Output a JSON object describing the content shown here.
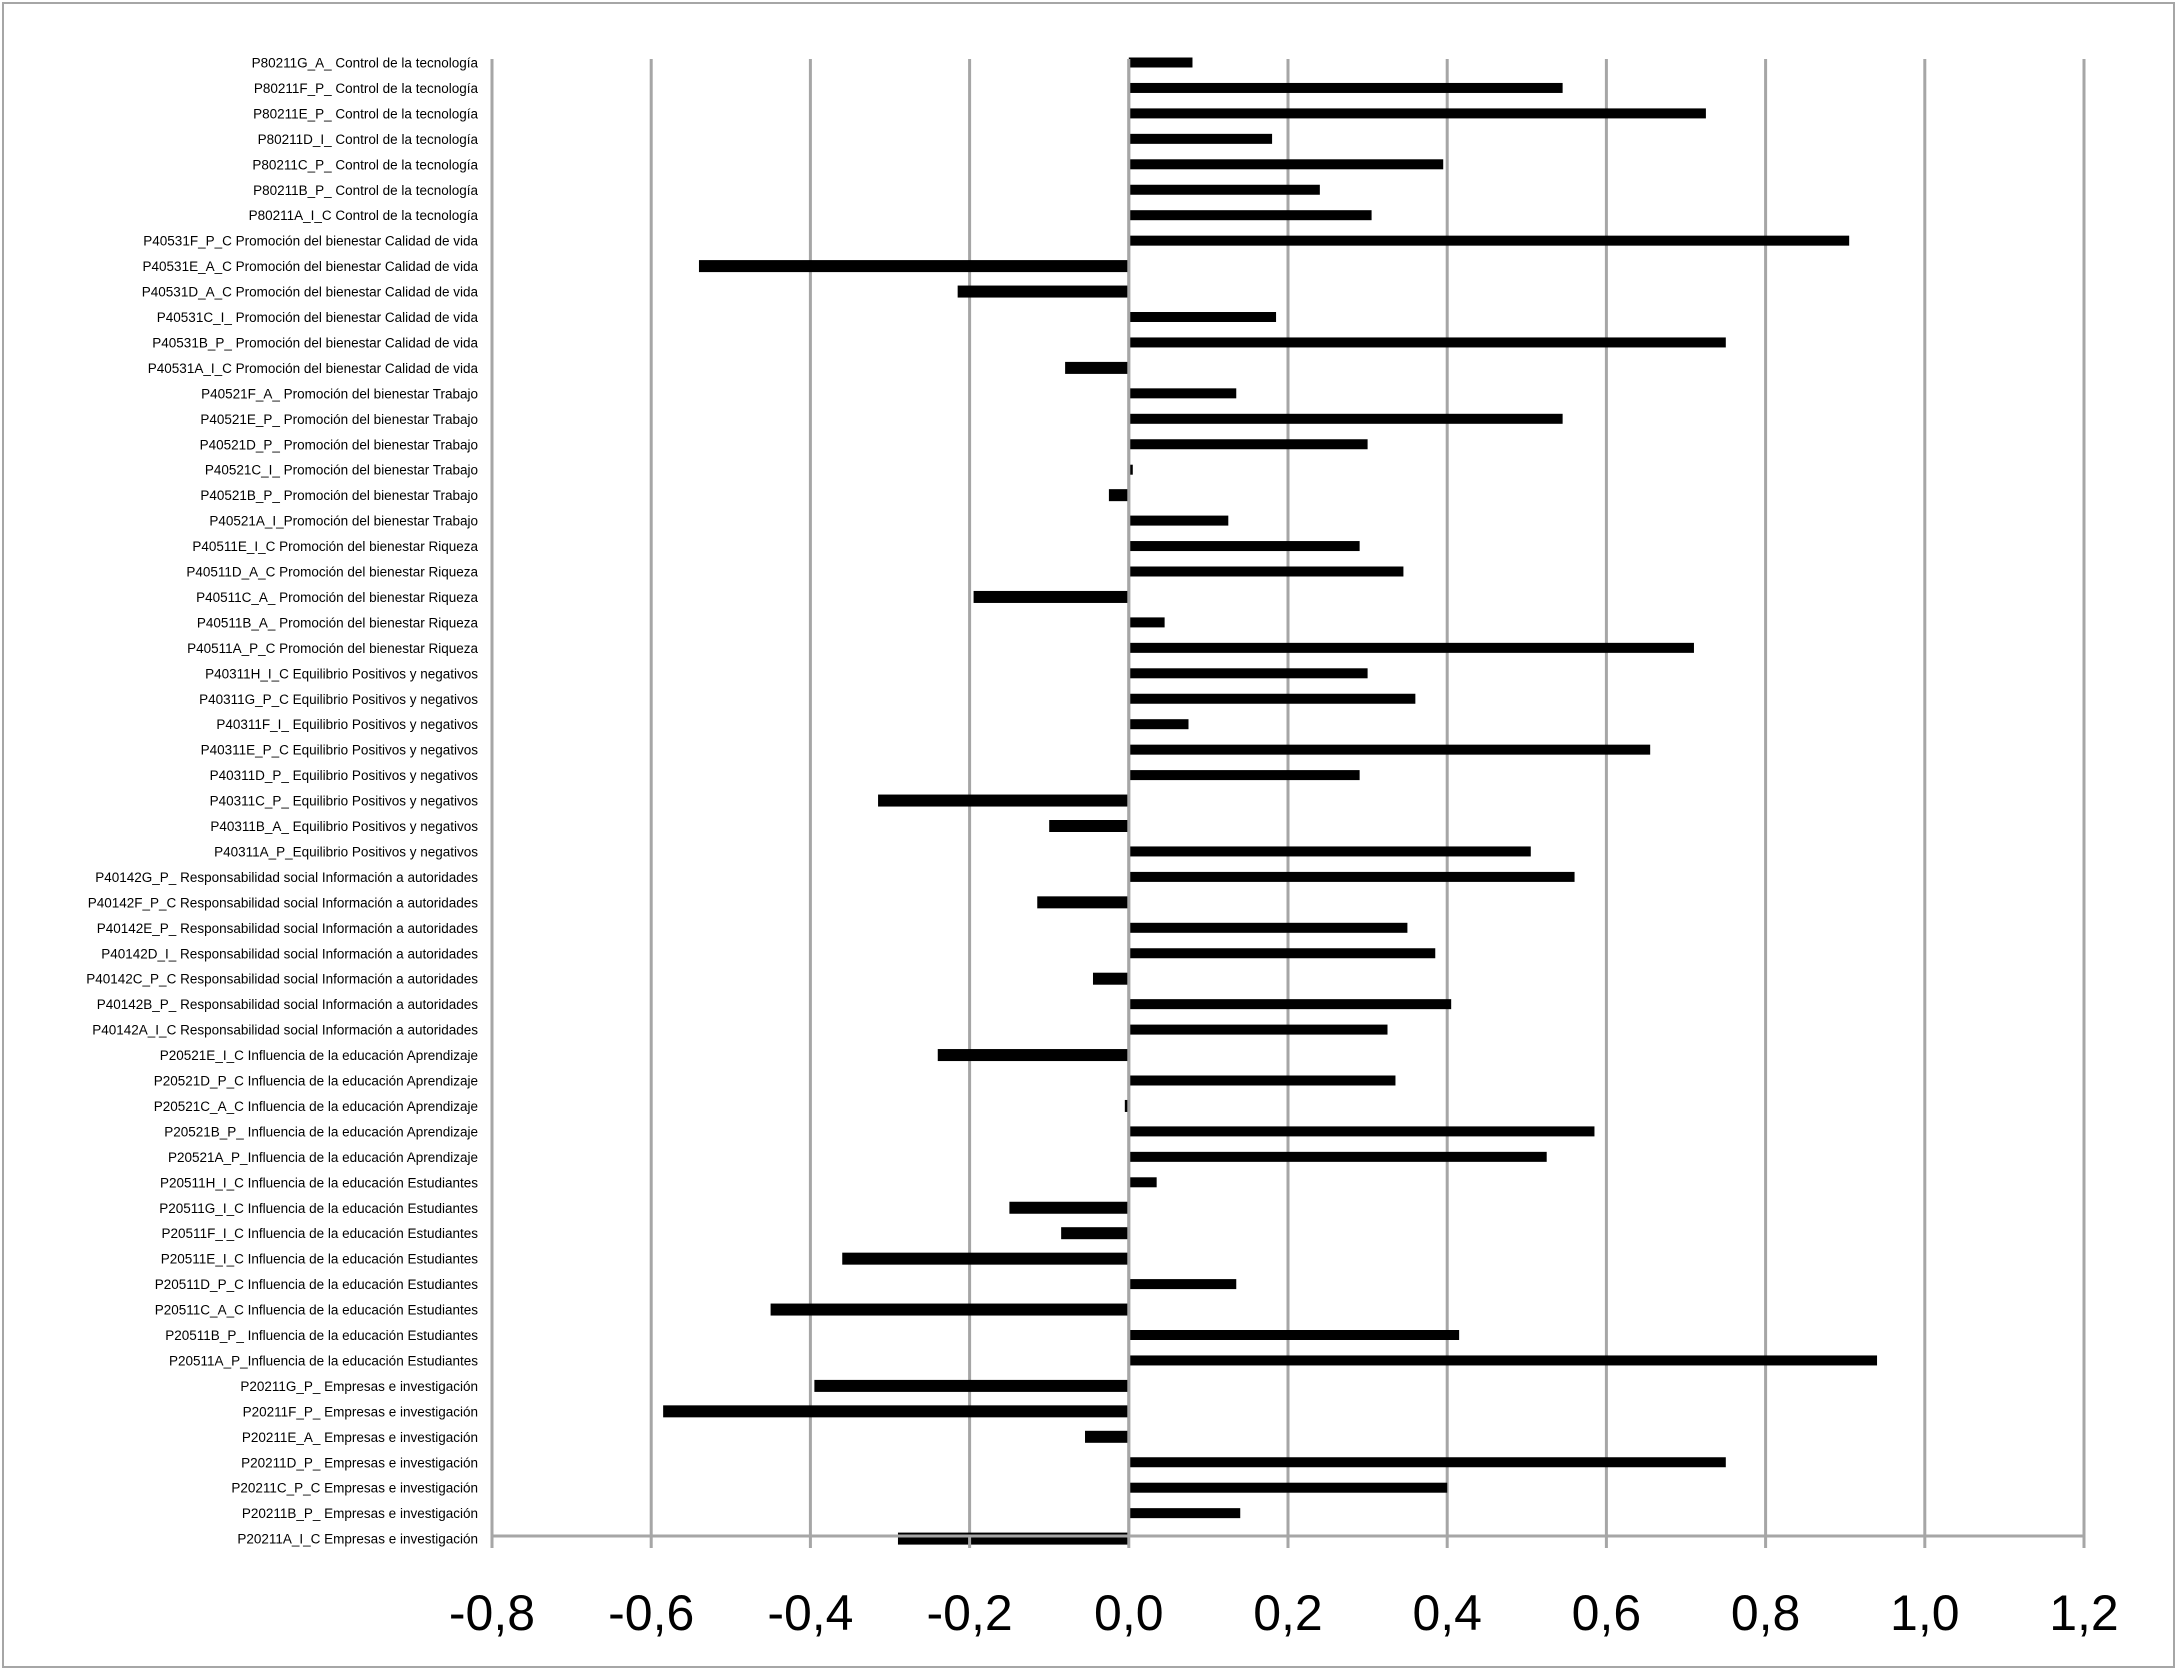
{
  "chart_data": {
    "type": "bar",
    "orientation": "horizontal",
    "title": "",
    "xlabel": "",
    "ylabel": "",
    "xlim": [
      -0.8,
      1.2
    ],
    "xticks": [
      -0.8,
      -0.6,
      -0.4,
      -0.2,
      0.0,
      0.2,
      0.4,
      0.6,
      0.8,
      1.0,
      1.2
    ],
    "xtick_labels": [
      "-0,8",
      "-0,6",
      "-0,4",
      "-0,2",
      "0,0",
      "0,2",
      "0,4",
      "0,6",
      "0,8",
      "1,0",
      "1,2"
    ],
    "grid": "vertical",
    "legend": "none",
    "categories": [
      "P80211G_A_ Control de la tecnología",
      "P80211F_P_ Control de la tecnología",
      "P80211E_P_ Control de la tecnología",
      "P80211D_I_ Control de la tecnología",
      "P80211C_P_ Control de la tecnología",
      "P80211B_P_ Control de la tecnología",
      "P80211A_I_C Control de la tecnología",
      "P40531F_P_C Promoción del bienestar Calidad de vida",
      "P40531E_A_C Promoción del bienestar Calidad de vida",
      "P40531D_A_C Promoción del bienestar Calidad de vida",
      "P40531C_I_ Promoción del bienestar Calidad de vida",
      "P40531B_P_ Promoción del bienestar Calidad de vida",
      "P40531A_I_C Promoción del bienestar Calidad de vida",
      "P40521F_A_ Promoción del bienestar Trabajo",
      "P40521E_P_ Promoción del bienestar Trabajo",
      "P40521D_P_ Promoción del bienestar Trabajo",
      "P40521C_I_ Promoción del bienestar Trabajo",
      "P40521B_P_ Promoción del bienestar Trabajo",
      "P40521A_I_Promoción del bienestar Trabajo",
      "P40511E_I_C Promoción del bienestar Riqueza",
      "P40511D_A_C Promoción del bienestar Riqueza",
      "P40511C_A_ Promoción del bienestar Riqueza",
      "P40511B_A_ Promoción del bienestar Riqueza",
      "P40511A_P_C Promoción del bienestar Riqueza",
      "P40311H_I_C Equilibrio Positivos y negativos",
      "P40311G_P_C Equilibrio Positivos y negativos",
      "P40311F_I_ Equilibrio Positivos y negativos",
      "P40311E_P_C Equilibrio Positivos y negativos",
      "P40311D_P_ Equilibrio Positivos y negativos",
      "P40311C_P_ Equilibrio Positivos y negativos",
      "P40311B_A_ Equilibrio Positivos y negativos",
      "P40311A_P_Equilibrio Positivos y negativos",
      "P40142G_P_ Responsabilidad social Información a autoridades",
      "P40142F_P_C Responsabilidad social Información a autoridades",
      "P40142E_P_ Responsabilidad social Información a autoridades",
      "P40142D_I_ Responsabilidad social Información a autoridades",
      "P40142C_P_C Responsabilidad social Información a autoridades",
      "P40142B_P_ Responsabilidad social Información a autoridades",
      "P40142A_I_C Responsabilidad social Información a autoridades",
      "P20521E_I_C Influencia de la educación Aprendizaje",
      "P20521D_P_C Influencia de la educación Aprendizaje",
      "P20521C_A_C Influencia de la educación Aprendizaje",
      "P20521B_P_ Influencia de la educación Aprendizaje",
      "P20521A_P_Influencia de la educación Aprendizaje",
      "P20511H_I_C Influencia de la educación Estudiantes",
      "P20511G_I_C Influencia de la educación Estudiantes",
      "P20511F_I_C Influencia de la educación Estudiantes",
      "P20511E_I_C Influencia de la educación Estudiantes",
      "P20511D_P_C Influencia de la educación Estudiantes",
      "P20511C_A_C Influencia de la educación Estudiantes",
      "P20511B_P_ Influencia de la educación Estudiantes",
      "P20511A_P_Influencia de la educación Estudiantes",
      "P20211G_P_ Empresas e investigación",
      "P20211F_P_ Empresas e investigación",
      "P20211E_A_ Empresas e investigación",
      "P20211D_P_ Empresas e investigación",
      "P20211C_P_C Empresas e investigación",
      "P20211B_P_ Empresas e investigación",
      "P20211A_I_C Empresas e investigación"
    ],
    "values": [
      0.08,
      0.545,
      0.725,
      0.18,
      0.395,
      0.24,
      0.305,
      0.905,
      -0.54,
      -0.215,
      0.185,
      0.75,
      -0.08,
      0.135,
      0.545,
      0.3,
      0.005,
      -0.025,
      0.125,
      0.29,
      0.345,
      -0.195,
      0.045,
      0.71,
      0.3,
      0.36,
      0.075,
      0.655,
      0.29,
      -0.315,
      -0.1,
      0.505,
      0.56,
      -0.115,
      0.35,
      0.385,
      -0.045,
      0.405,
      0.325,
      -0.24,
      0.335,
      -0.005,
      0.585,
      0.525,
      0.035,
      -0.15,
      -0.085,
      -0.36,
      0.135,
      -0.45,
      0.415,
      0.94,
      -0.395,
      -0.585,
      -0.055,
      0.75,
      0.4,
      0.14,
      -0.29
    ],
    "colors": {
      "bar": "#000000",
      "grid": "#a6a6a6",
      "axis": "#a6a6a6",
      "border": "#a6a6a6",
      "background": "#ffffff"
    }
  }
}
